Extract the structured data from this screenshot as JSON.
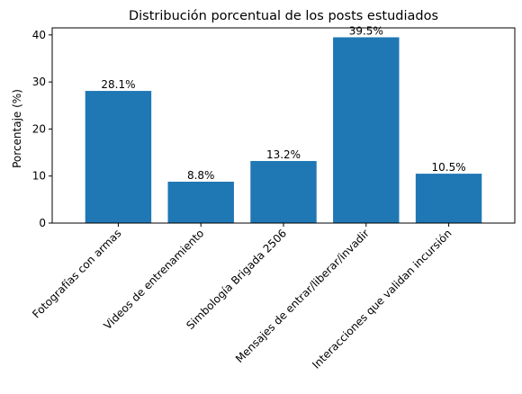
{
  "chart_data": {
    "type": "bar",
    "title": "Distribución porcentual de los posts estudiados",
    "xlabel": "",
    "ylabel": "Porcentaje (%)",
    "categories": [
      "Fotografías con armas",
      "Videos de entrenamiento",
      "Simbología Brigada 2506",
      "Mensajes de entrar/liberar/invadir",
      "Interacciones que validan incursión"
    ],
    "values": [
      28.1,
      8.8,
      13.2,
      39.5,
      10.5
    ],
    "data_labels": [
      "28.1%",
      "8.8%",
      "13.2%",
      "39.5%",
      "10.5%"
    ],
    "ylim": [
      0,
      41.5
    ],
    "yticks": [
      0,
      10,
      20,
      30,
      40
    ],
    "bar_color": "#1f77b4",
    "grid": false,
    "legend": "none"
  }
}
